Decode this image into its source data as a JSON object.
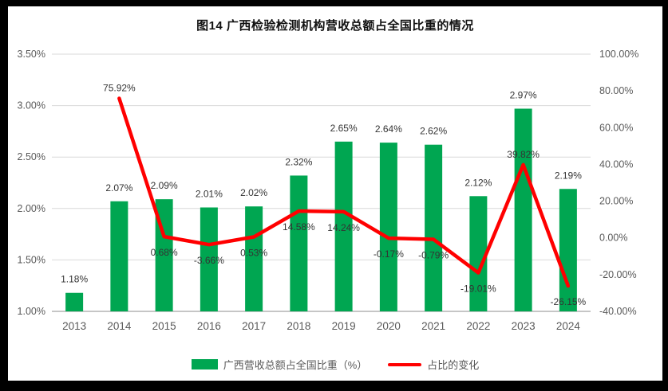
{
  "chart_data": {
    "type": "bar",
    "combo": "bar+line",
    "title": "图14 广西检验检测机构营收总额占全国比重的情况",
    "categories": [
      "2013",
      "2014",
      "2015",
      "2016",
      "2017",
      "2018",
      "2019",
      "2020",
      "2021",
      "2022",
      "2023",
      "2024"
    ],
    "series": [
      {
        "name": "广西营收总额占全国比重（%）",
        "type": "bar",
        "axis": "left",
        "color": "#00A651",
        "values": [
          1.18,
          2.07,
          2.09,
          2.01,
          2.02,
          2.32,
          2.65,
          2.64,
          2.62,
          2.12,
          2.97,
          2.19
        ],
        "labels": [
          "1.18%",
          "2.07%",
          "2.09%",
          "2.01%",
          "2.02%",
          "2.32%",
          "2.65%",
          "2.64%",
          "2.62%",
          "2.12%",
          "2.97%",
          "2.19%"
        ]
      },
      {
        "name": "占比的变化",
        "type": "line",
        "axis": "right",
        "color": "#FF0000",
        "values": [
          null,
          75.92,
          0.68,
          -3.66,
          0.53,
          14.58,
          14.24,
          -0.17,
          -0.79,
          -19.01,
          39.82,
          -26.15
        ],
        "labels": [
          null,
          "75.92%",
          "0.68%",
          "-3.66%",
          "0.53%",
          "14.58%",
          "14.24%",
          "-0.17%",
          "-0.79%",
          "-19.01%",
          "39.82%",
          "-26.15%"
        ],
        "sides": [
          null,
          "above",
          "below",
          "below",
          "below",
          "below",
          "below",
          "below",
          "below",
          "below",
          "above",
          "below"
        ]
      }
    ],
    "left_axis": {
      "min": 1.0,
      "max": 3.5,
      "ticks": [
        {
          "label": "3.50%",
          "value": 3.5
        },
        {
          "label": "3.00%",
          "value": 3.0
        },
        {
          "label": "2.50%",
          "value": 2.5
        },
        {
          "label": "2.00%",
          "value": 2.0
        },
        {
          "label": "1.50%",
          "value": 1.5
        },
        {
          "label": "1.00%",
          "value": 1.0
        }
      ]
    },
    "right_axis": {
      "min": -40,
      "max": 100,
      "ticks": [
        {
          "label": "100.00%",
          "value": 100
        },
        {
          "label": "80.00%",
          "value": 80
        },
        {
          "label": "60.00%",
          "value": 60
        },
        {
          "label": "40.00%",
          "value": 40
        },
        {
          "label": "20.00%",
          "value": 20
        },
        {
          "label": "0.00%",
          "value": 0
        },
        {
          "label": "-20.00%",
          "value": -20
        },
        {
          "label": "-40.00%",
          "value": -40
        }
      ]
    },
    "grid": "horizontal",
    "legend_position": "bottom"
  }
}
